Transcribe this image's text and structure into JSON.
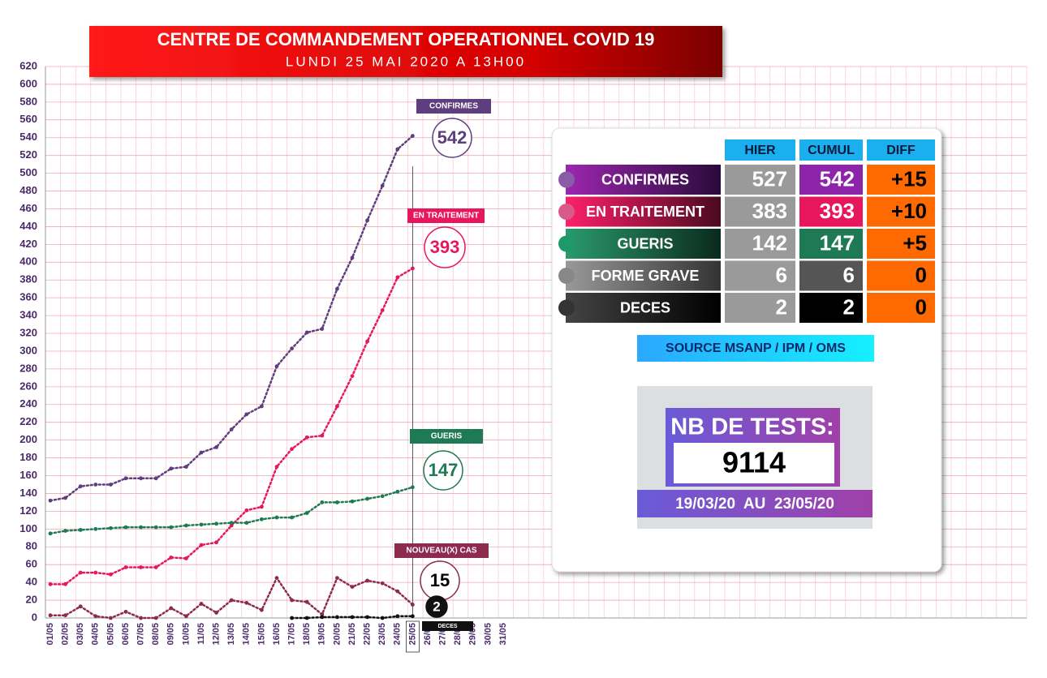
{
  "chart_data": {
    "type": "line",
    "title": "CENTRE DE COMMANDEMENT OPERATIONNEL COVID 19",
    "subtitle": "LUNDI 25 MAI 2020 A 13H00",
    "categories": [
      "01/05",
      "02/05",
      "03/05",
      "04/05",
      "05/05",
      "06/05",
      "07/05",
      "08/05",
      "09/05",
      "10/05",
      "11/05",
      "12/05",
      "13/05",
      "14/05",
      "15/05",
      "16/05",
      "17/05",
      "18/05",
      "19/05",
      "20/05",
      "21/05",
      "22/05",
      "23/05",
      "24/05",
      "25/05",
      "26/05",
      "27/05",
      "28/05",
      "29/05",
      "30/05",
      "31/05"
    ],
    "series": [
      {
        "name": "CONFIRMES",
        "color": "#5e3e7e",
        "values": [
          132,
          135,
          148,
          150,
          150,
          157,
          157,
          157,
          168,
          170,
          186,
          192,
          212,
          229,
          238,
          283,
          303,
          321,
          325,
          370,
          405,
          447,
          486,
          527,
          542,
          null,
          null,
          null,
          null,
          null,
          null
        ]
      },
      {
        "name": "EN TRAITEMENT",
        "color": "#e8175d",
        "values": [
          38,
          38,
          51,
          51,
          49,
          57,
          57,
          57,
          68,
          67,
          82,
          85,
          104,
          121,
          125,
          170,
          190,
          203,
          205,
          238,
          272,
          311,
          346,
          383,
          393,
          null,
          null,
          null,
          null,
          null,
          null
        ]
      },
      {
        "name": "GUERIS",
        "color": "#1e7a55",
        "values": [
          95,
          98,
          99,
          100,
          101,
          102,
          102,
          102,
          102,
          104,
          105,
          106,
          107,
          107,
          111,
          113,
          113,
          118,
          130,
          130,
          131,
          134,
          137,
          142,
          147,
          null,
          null,
          null,
          null,
          null,
          null
        ]
      },
      {
        "name": "NOUVEAU(X) CAS",
        "color": "#8e2a4e",
        "values": [
          3,
          3,
          13,
          2,
          0,
          7,
          0,
          0,
          11,
          2,
          16,
          6,
          20,
          17,
          9,
          45,
          20,
          18,
          4,
          45,
          35,
          42,
          39,
          30,
          15,
          null,
          null,
          null,
          null,
          null,
          null
        ]
      },
      {
        "name": "DECES",
        "color": "#111111",
        "values": [
          null,
          null,
          null,
          null,
          null,
          null,
          null,
          null,
          null,
          null,
          null,
          null,
          null,
          null,
          null,
          null,
          0,
          0,
          1,
          1,
          1,
          1,
          0,
          2,
          2,
          null,
          null,
          null,
          null,
          null,
          null
        ]
      }
    ],
    "ylim": [
      0,
      620
    ],
    "yticks": [
      0,
      20,
      40,
      60,
      80,
      100,
      120,
      140,
      160,
      180,
      200,
      220,
      240,
      260,
      280,
      300,
      320,
      340,
      360,
      380,
      400,
      420,
      440,
      460,
      480,
      500,
      520,
      540,
      560,
      580,
      600,
      620
    ],
    "grid": true
  },
  "table": {
    "headers": [
      "HIER",
      "CUMUL",
      "DIFF"
    ],
    "rows": [
      [
        "CONFIRMES",
        527,
        542,
        "+15"
      ],
      [
        "EN TRAITEMENT",
        383,
        393,
        "+10"
      ],
      [
        "GUERIS",
        142,
        147,
        "+5"
      ],
      [
        "FORME GRAVE",
        6,
        6,
        "0"
      ],
      [
        "DECES",
        2,
        2,
        "0"
      ]
    ]
  },
  "source": "SOURCE MSANP / IPM / OMS",
  "tests": {
    "label": "NB DE TESTS:",
    "value": 9114,
    "period": "19/03/20  AU  23/05/20"
  }
}
